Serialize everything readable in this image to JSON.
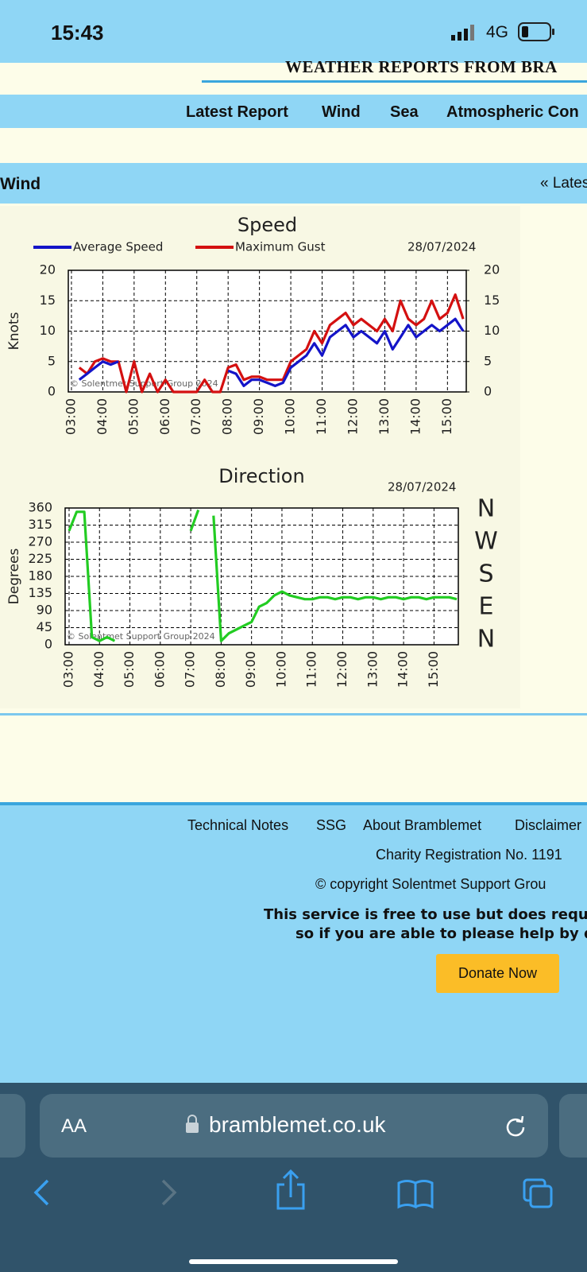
{
  "status": {
    "time": "15:43",
    "network": "4G"
  },
  "header": {
    "title": "WEATHER REPORTS FROM BRA"
  },
  "nav": [
    "Latest Report",
    "Wind",
    "Sea",
    "Atmospheric Con"
  ],
  "section": {
    "title": "Wind",
    "link": "« Lates"
  },
  "chart_data": [
    {
      "type": "line",
      "title": "Speed",
      "date": "28/07/2024",
      "y_label": "Knots",
      "watermark": "© Solentmet Support Group 2024",
      "xlim": [
        2.9,
        15.6
      ],
      "ylim": [
        0,
        20
      ],
      "y2lim": [
        0,
        20
      ],
      "grid": true,
      "xticks": [
        {
          "value": 3,
          "label": "03:00"
        },
        {
          "value": 4,
          "label": "04:00"
        },
        {
          "value": 5,
          "label": "05:00"
        },
        {
          "value": 6,
          "label": "06:00"
        },
        {
          "value": 7,
          "label": "07:00"
        },
        {
          "value": 8,
          "label": "08:00"
        },
        {
          "value": 9,
          "label": "09:00"
        },
        {
          "value": 10,
          "label": "10:00"
        },
        {
          "value": 11,
          "label": "11:00"
        },
        {
          "value": 12,
          "label": "12:00"
        },
        {
          "value": 13,
          "label": "13:00"
        },
        {
          "value": 14,
          "label": "14:00"
        },
        {
          "value": 15,
          "label": "15:00"
        }
      ],
      "yticks": [
        0,
        5,
        10,
        15,
        20
      ],
      "y2ticks": [
        0,
        5,
        10,
        15,
        20
      ],
      "x": [
        3.25,
        3.5,
        3.75,
        4.0,
        4.25,
        4.5,
        4.75,
        5.0,
        5.25,
        5.5,
        5.75,
        6.0,
        6.25,
        6.5,
        6.75,
        7.0,
        7.25,
        7.5,
        7.75,
        8.0,
        8.25,
        8.5,
        8.75,
        9.0,
        9.25,
        9.5,
        9.75,
        10.0,
        10.25,
        10.5,
        10.75,
        11.0,
        11.25,
        11.5,
        11.75,
        12.0,
        12.25,
        12.5,
        12.75,
        13.0,
        13.25,
        13.5,
        13.75,
        14.0,
        14.25,
        14.5,
        14.75,
        15.0,
        15.25,
        15.5
      ],
      "series": [
        {
          "name": "Maximum Gust",
          "color": "#d41010",
          "values": [
            4,
            3,
            5,
            5.5,
            5,
            5,
            0,
            5,
            0,
            3,
            0,
            2,
            0,
            0,
            0,
            0,
            2,
            0,
            0,
            4,
            4.5,
            2,
            2.5,
            2.5,
            2,
            2,
            2,
            5,
            6,
            7,
            10,
            8,
            11,
            12,
            13,
            11,
            12,
            11,
            10,
            12,
            10,
            15,
            12,
            11,
            12,
            15,
            12,
            13,
            16,
            12
          ]
        },
        {
          "name": "Average Speed",
          "color": "#1414c8",
          "values": [
            2,
            3,
            4,
            5,
            4.5,
            5,
            null,
            null,
            null,
            null,
            null,
            null,
            null,
            null,
            null,
            null,
            null,
            null,
            null,
            3.5,
            3,
            1,
            2,
            2,
            1.5,
            1,
            1.5,
            4,
            5,
            6,
            8,
            6,
            9,
            10,
            11,
            9,
            10,
            9,
            8,
            10,
            7,
            9,
            11,
            9,
            10,
            11,
            10,
            11,
            12,
            10
          ]
        }
      ]
    },
    {
      "type": "line",
      "title": "Direction",
      "date": "28/07/2024",
      "y_label": "Degrees",
      "watermark": "© Solentmet Support Group 2024",
      "annotations": [
        "N",
        "W",
        "S",
        "E",
        "N"
      ],
      "xlim": [
        2.87,
        15.8
      ],
      "ylim": [
        0,
        360
      ],
      "grid": true,
      "xticks": [
        {
          "value": 3,
          "label": "03:00"
        },
        {
          "value": 4,
          "label": "04:00"
        },
        {
          "value": 5,
          "label": "05:00"
        },
        {
          "value": 6,
          "label": "06:00"
        },
        {
          "value": 7,
          "label": "07:00"
        },
        {
          "value": 8,
          "label": "08:00"
        },
        {
          "value": 9,
          "label": "09:00"
        },
        {
          "value": 10,
          "label": "10:00"
        },
        {
          "value": 11,
          "label": "11:00"
        },
        {
          "value": 12,
          "label": "12:00"
        },
        {
          "value": 13,
          "label": "13:00"
        },
        {
          "value": 14,
          "label": "14:00"
        },
        {
          "value": 15,
          "label": "15:00"
        }
      ],
      "yticks": [
        0,
        45,
        90,
        135,
        180,
        225,
        270,
        315,
        360
      ],
      "x": [
        3.0,
        3.25,
        3.5,
        3.75,
        4.0,
        4.25,
        4.5,
        4.75,
        5.0,
        5.25,
        5.5,
        5.75,
        6.0,
        6.25,
        6.5,
        6.75,
        7.0,
        7.25,
        7.5,
        7.75,
        8.0,
        8.25,
        8.5,
        8.75,
        9.0,
        9.25,
        9.5,
        9.75,
        10.0,
        10.25,
        10.5,
        10.75,
        11.0,
        11.25,
        11.5,
        11.75,
        12.0,
        12.25,
        12.5,
        12.75,
        13.0,
        13.25,
        13.5,
        13.75,
        14.0,
        14.25,
        14.5,
        14.75,
        15.0,
        15.25,
        15.5,
        15.75
      ],
      "series": [
        {
          "color": "#22cc22",
          "values": [
            300,
            350,
            350,
            20,
            10,
            20,
            10,
            null,
            null,
            null,
            null,
            null,
            null,
            null,
            null,
            null,
            300,
            355,
            null,
            340,
            10,
            30,
            40,
            50,
            60,
            100,
            110,
            130,
            140,
            130,
            125,
            120,
            120,
            125,
            125,
            120,
            125,
            125,
            120,
            125,
            125,
            120,
            125,
            125,
            120,
            125,
            125,
            120,
            125,
            125,
            125,
            120
          ]
        }
      ]
    }
  ],
  "footer": {
    "links": [
      "Technical Notes",
      "SSG",
      "About Bramblemet",
      "Disclaimer"
    ],
    "charity": "Charity Registration No. 1191",
    "copyright": "© copyright Solentmet Support Grou",
    "notice": [
      "This service is free to use but does requ",
      "so if you are able to please help by d"
    ],
    "button": "Donate Now"
  },
  "browser": {
    "text_size": "AA",
    "url": "bramblemet.co.uk"
  }
}
